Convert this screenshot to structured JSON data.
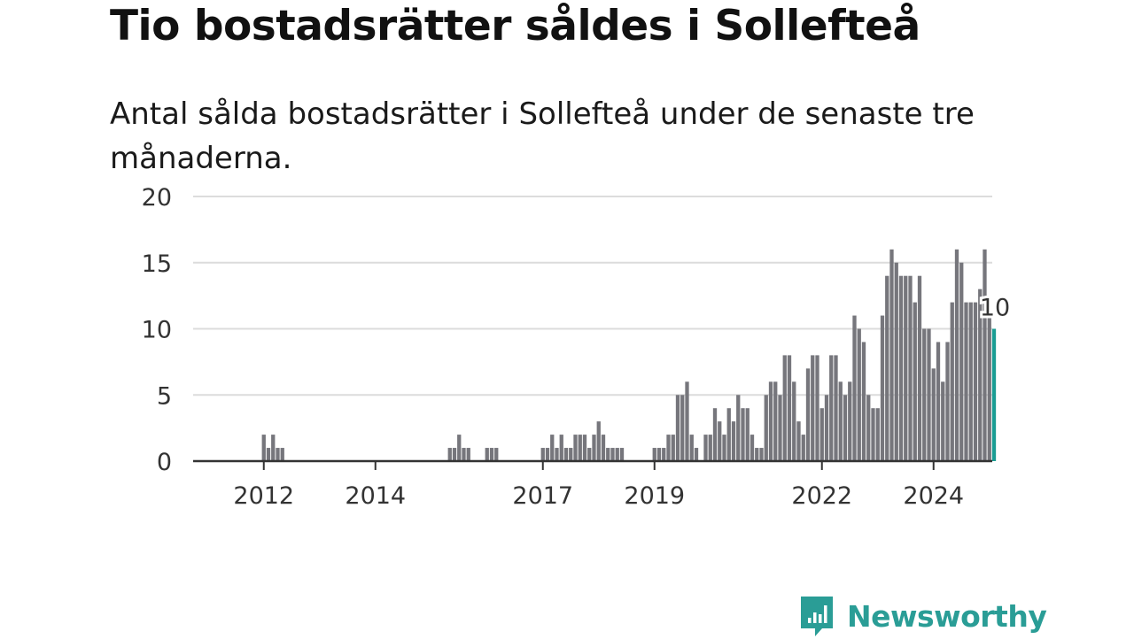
{
  "title": "Tio bostadsrätter såldes i Sollefteå",
  "subtitle": "Antal sålda bostadsrätter i Sollefteå under de senaste tre månaderna.",
  "brand": {
    "name": "Newsworthy",
    "color": "#2a9d96"
  },
  "colors": {
    "bar": "#76767c",
    "highlight": "#1a9c93",
    "grid": "#dcdcdc",
    "axis": "#333333"
  },
  "chart_data": {
    "type": "bar",
    "x_start": "2011-06",
    "x_end": "2024-12",
    "ylim": [
      0,
      20
    ],
    "yticks": [
      0,
      5,
      10,
      15,
      20
    ],
    "xticks": [
      "2012",
      "2014",
      "2017",
      "2019",
      "2022",
      "2024"
    ],
    "grid": true,
    "legend": "none",
    "highlight_label": "10",
    "values": [
      0,
      0,
      0,
      0,
      0,
      0,
      0,
      2,
      1,
      2,
      1,
      1,
      0,
      0,
      0,
      0,
      0,
      0,
      0,
      0,
      0,
      0,
      0,
      0,
      0,
      0,
      0,
      0,
      0,
      0,
      0,
      0,
      0,
      0,
      0,
      0,
      0,
      0,
      0,
      0,
      0,
      0,
      0,
      0,
      0,
      0,
      0,
      1,
      1,
      2,
      1,
      1,
      0,
      0,
      0,
      1,
      1,
      1,
      0,
      0,
      0,
      0,
      0,
      0,
      0,
      0,
      0,
      1,
      1,
      2,
      1,
      2,
      1,
      1,
      2,
      2,
      2,
      1,
      2,
      3,
      2,
      1,
      1,
      1,
      1,
      0,
      0,
      0,
      0,
      0,
      0,
      1,
      1,
      1,
      2,
      2,
      5,
      5,
      6,
      2,
      1,
      0,
      2,
      2,
      4,
      3,
      2,
      4,
      3,
      5,
      4,
      4,
      2,
      1,
      1,
      5,
      6,
      6,
      5,
      8,
      8,
      6,
      3,
      2,
      7,
      8,
      8,
      4,
      5,
      8,
      8,
      6,
      5,
      6,
      11,
      10,
      9,
      5,
      4,
      4,
      11,
      14,
      16,
      15,
      14,
      14,
      14,
      12,
      14,
      10,
      10,
      7,
      9,
      6,
      9,
      12,
      16,
      15,
      12,
      12,
      12,
      13,
      16,
      11,
      10
    ]
  }
}
